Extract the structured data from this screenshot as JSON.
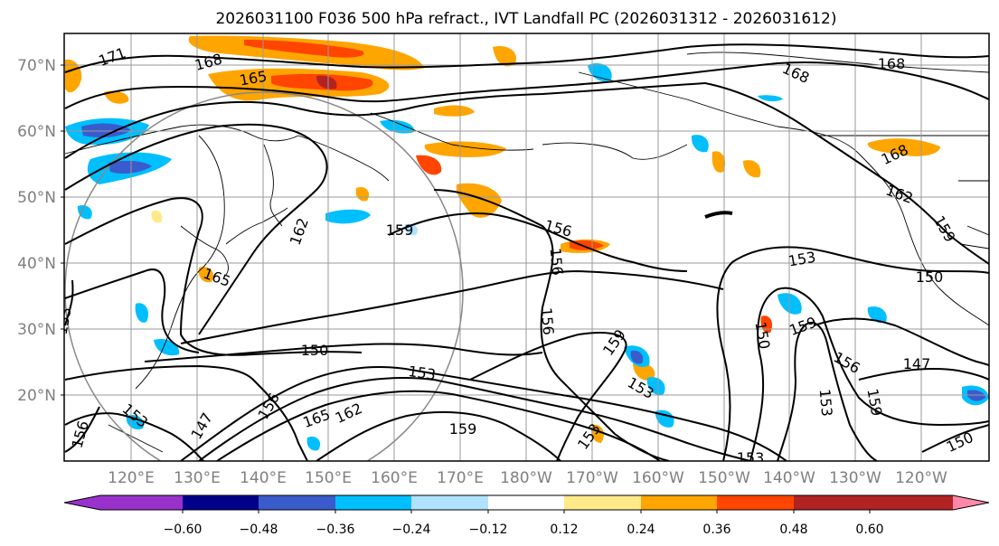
{
  "title": "2026031100 F036 500 hPa refract., IVT Landfall PC (2026031312 - 2026031612)",
  "lat_labels": [
    "70°N",
    "60°N",
    "50°N",
    "40°N",
    "30°N",
    "20°N"
  ],
  "lon_labels": [
    "120°E",
    "130°E",
    "140°E",
    "150°E",
    "160°E",
    "170°E",
    "180°W",
    "170°W",
    "160°W",
    "150°W",
    "140°W",
    "130°W",
    "120°W"
  ],
  "colorbar": {
    "colors": [
      "#9932cc",
      "#00008b",
      "#3a5bcc",
      "#00bfff",
      "#b0e2ff",
      "#ffffff",
      "#ffe98a",
      "#ffa500",
      "#ff4500",
      "#b22222",
      "#ff88aa"
    ],
    "tick_labels": [
      "−0.60",
      "−0.48",
      "−0.36",
      "−0.24",
      "−0.12",
      "0.12",
      "0.24",
      "0.36",
      "0.48",
      "0.60"
    ]
  },
  "contour_labels": [
    "171",
    "168",
    "165",
    "168",
    "168",
    "168",
    "162",
    "159",
    "162",
    "165",
    "159",
    "156",
    "156",
    "156",
    "153",
    "150",
    "150",
    "153",
    "159",
    "159",
    "156",
    "159",
    "153",
    "147",
    "150",
    "150",
    "153",
    "153",
    "153",
    "159",
    "162",
    "165",
    "156",
    "147",
    "156",
    "153",
    "150",
    "159",
    "153"
  ],
  "shading_colors": {
    "orange": "#ffa500",
    "red": "#ff4500",
    "darkred": "#b22222",
    "yellow": "#ffe98a",
    "blue": "#00bfff",
    "medblue": "#3a5bcc",
    "lightblue": "#b0e2ff"
  }
}
